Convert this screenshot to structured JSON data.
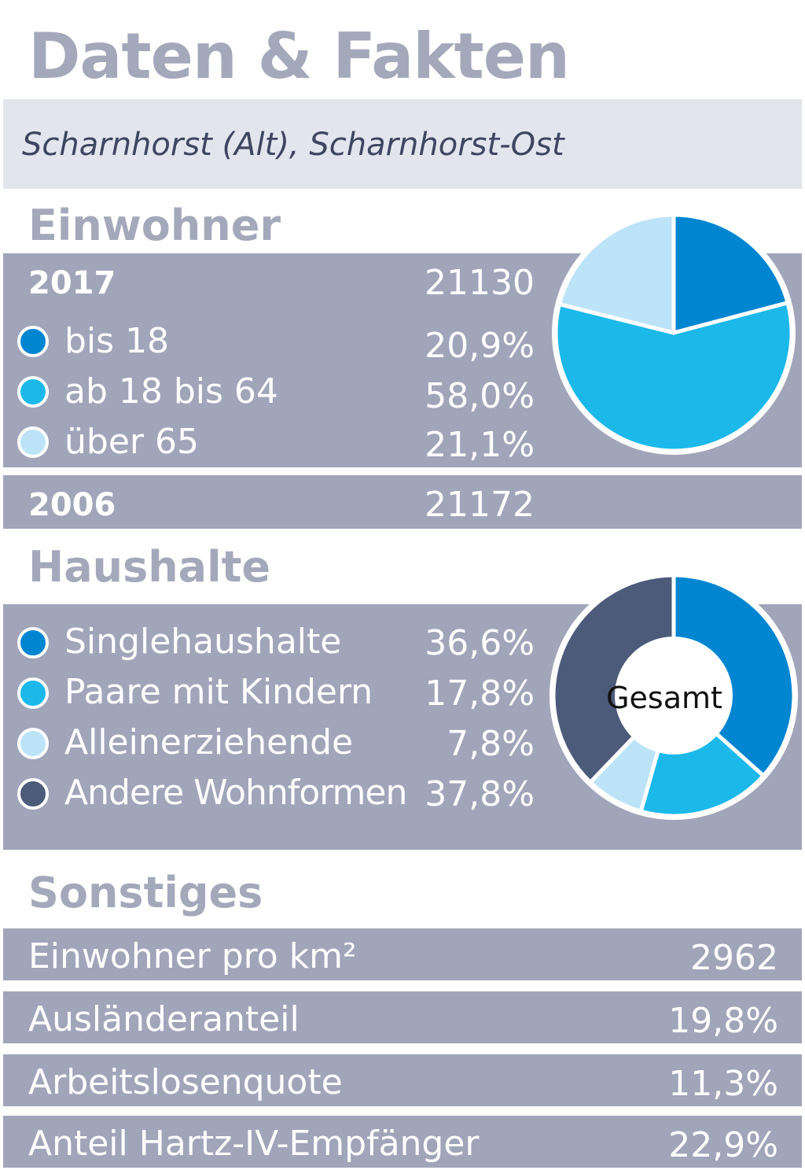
{
  "header": {
    "title": "Daten & Fakten",
    "subtitle": "Scharnhorst (Alt), Scharnhorst-Ost"
  },
  "einwohner": {
    "heading": "Einwohner",
    "year_current": "2017",
    "total_current": "21130",
    "groups": [
      {
        "label": "bis 18",
        "value_text": "20,9%",
        "color": "#0086d1"
      },
      {
        "label": "ab 18 bis 64",
        "value_text": "58,0%",
        "color": "#1cb8ea"
      },
      {
        "label": "über 65",
        "value_text": "21,1%",
        "color": "#bde3f8"
      }
    ],
    "year_past": "2006",
    "total_past": "21172"
  },
  "haushalte": {
    "heading": "Haushalte",
    "center_label": "Gesamt",
    "groups": [
      {
        "label": "Singlehaushalte",
        "value_text": "36,6%",
        "color": "#0086d1"
      },
      {
        "label": "Paare mit Kindern",
        "value_text": "17,8%",
        "color": "#1cb8ea"
      },
      {
        "label": "Alleinerziehende",
        "value_text": "7,8%",
        "color": "#bde3f8"
      },
      {
        "label": "Andere Wohnformen",
        "value_text": "37,8%",
        "color": "#4d5b7b"
      }
    ]
  },
  "sonstiges": {
    "heading": "Sonstiges",
    "rows": [
      {
        "label": "Einwohner pro km²",
        "value": "2962"
      },
      {
        "label": "Ausländeranteil",
        "value": "19,8%"
      },
      {
        "label": "Arbeitslosenquote",
        "value": "11,3%"
      },
      {
        "label": "Anteil Hartz-IV-Empfänger",
        "value": "22,9%"
      }
    ]
  },
  "colors": {
    "band": "#a1a5ba",
    "heading": "#a4a8bb",
    "subtitle_bg": "#e3e5ee"
  },
  "chart_data": [
    {
      "type": "pie",
      "title": "",
      "categories": [
        "bis 18",
        "ab 18 bis 64",
        "über 65"
      ],
      "values": [
        20.9,
        58.0,
        21.1
      ],
      "colors": [
        "#0086d1",
        "#1cb8ea",
        "#bde3f8"
      ]
    },
    {
      "type": "pie",
      "variant": "donut",
      "title": "",
      "center_label": "Gesamt",
      "categories": [
        "Singlehaushalte",
        "Paare mit Kindern",
        "Alleinerziehende",
        "Andere Wohnformen"
      ],
      "values": [
        36.6,
        17.8,
        7.8,
        37.8
      ],
      "colors": [
        "#0086d1",
        "#1cb8ea",
        "#bde3f8",
        "#4d5b7b"
      ]
    }
  ]
}
